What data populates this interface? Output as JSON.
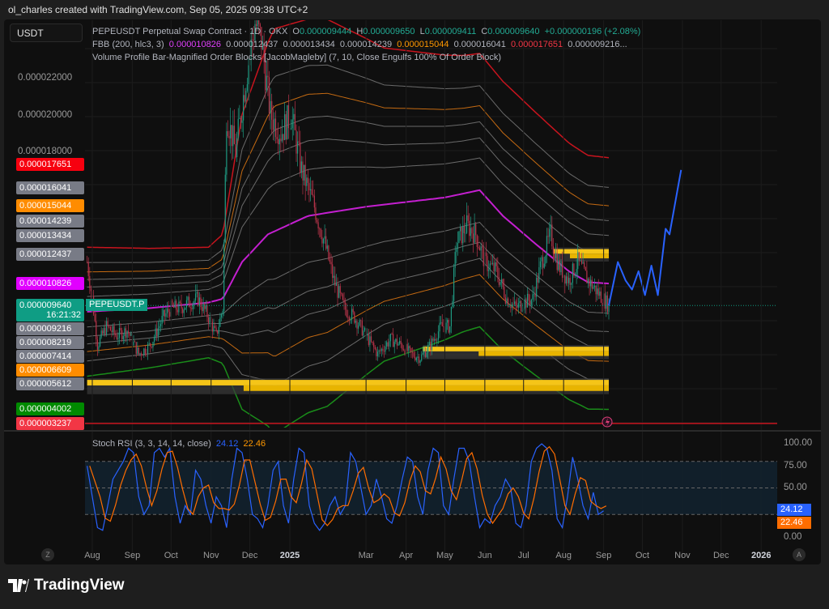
{
  "credit": "ol_charles created with TradingView.com, Sep 05, 2025 09:38 UTC+2",
  "currency": "USDT",
  "legend": {
    "symbol": "PEPEUSDT Perpetual Swap Contract · 1D · OKX",
    "o_label": "O",
    "o": "0.000009444",
    "h_label": "H",
    "h": "0.000009650",
    "l_label": "L",
    "l": "0.000009411",
    "c_label": "C",
    "c": "0.000009640",
    "change": "+0.000000196 (+2.08%)",
    "fbb_name": "FBB (200, hlc3, 3)",
    "fbb_values": [
      "0.000010826",
      "0.000012437",
      "0.000013434",
      "0.000014239",
      "0.000015044",
      "0.000016041",
      "0.000017651",
      "0.000009216..."
    ],
    "vp_name": "Volume Profile Bar-Magnified Order Blocks [JacobMagleby] (7, 10, Close Engulfs 100% Of Order Block)"
  },
  "price_ticks": [
    {
      "label": "0.000022000",
      "price": 2.2e-05
    },
    {
      "label": "0.000020000",
      "price": 2e-05
    },
    {
      "label": "0.000018000",
      "price": 1.8e-05
    }
  ],
  "price_badges": [
    {
      "label": "0.000017651",
      "price": 1.7651e-05,
      "color": "#f7000f"
    },
    {
      "label": "0.000016041",
      "price": 1.6041e-05,
      "color": "#787b86"
    },
    {
      "label": "0.000015044",
      "price": 1.5044e-05,
      "color": "#ff8c00"
    },
    {
      "label": "0.000014239",
      "price": 1.4239e-05,
      "color": "#787b86"
    },
    {
      "label": "0.000013434",
      "price": 1.3434e-05,
      "color": "#787b86"
    },
    {
      "label": "0.000012437",
      "price": 1.2437e-05,
      "color": "#787b86"
    },
    {
      "label": "0.000010826",
      "price": 1.0826e-05,
      "color": "#e100ff"
    },
    {
      "label": "0.000009216",
      "price": 9.216e-06,
      "color": "#787b86"
    },
    {
      "label": "0.000008219",
      "price": 8.219e-06,
      "color": "#787b86"
    },
    {
      "label": "0.000007414",
      "price": 7.414e-06,
      "color": "#787b86"
    },
    {
      "label": "0.000006609",
      "price": 6.609e-06,
      "color": "#ff8c00"
    },
    {
      "label": "0.000005612",
      "price": 5.612e-06,
      "color": "#787b86"
    },
    {
      "label": "0.000004002",
      "price": 4.002e-06,
      "color": "#008a00"
    },
    {
      "label": "0.000003237",
      "price": 3.237e-06,
      "color": "#f23645"
    }
  ],
  "last_price": {
    "label": "0.000009640",
    "countdown": "16:21:32",
    "symbol_tag": "PEPEUSDT.P",
    "color": "#0f9d84",
    "price": 9.64e-06
  },
  "colors": {
    "up": "#1f9a82",
    "down": "#b8344a",
    "basis": "#c41fd0",
    "upper": "#c8141e",
    "lower": "#1a8c1a",
    "fib_orange": "#c46a12",
    "fib_gray": "#6a6a6a",
    "projection": "#2962ff",
    "order_block": "#f5c518"
  },
  "price_path": [
    [
      "2024-07-28",
      12
    ],
    [
      "2024-08-01",
      10
    ],
    [
      "2024-08-05",
      7.5
    ],
    [
      "2024-08-12",
      8.5
    ],
    [
      "2024-08-20",
      8
    ],
    [
      "2024-08-28",
      8.3
    ],
    [
      "2024-09-06",
      7
    ],
    [
      "2024-09-15",
      7.5
    ],
    [
      "2024-09-25",
      9
    ],
    [
      "2024-10-01",
      9.5
    ],
    [
      "2024-10-08",
      9.5
    ],
    [
      "2024-10-15",
      9.8
    ],
    [
      "2024-10-22",
      10
    ],
    [
      "2024-10-30",
      9
    ],
    [
      "2024-11-05",
      8
    ],
    [
      "2024-11-10",
      9.5
    ],
    [
      "2024-11-13",
      20
    ],
    [
      "2024-11-20",
      18
    ],
    [
      "2024-11-28",
      22
    ],
    [
      "2024-12-05",
      25
    ],
    [
      "2024-12-10",
      24
    ],
    [
      "2024-12-17",
      20
    ],
    [
      "2024-12-25",
      19
    ],
    [
      "2025-01-02",
      20
    ],
    [
      "2025-01-10",
      17
    ],
    [
      "2025-01-20",
      15
    ],
    [
      "2025-01-28",
      13
    ],
    [
      "2025-02-04",
      11
    ],
    [
      "2025-02-12",
      9.5
    ],
    [
      "2025-02-20",
      9
    ],
    [
      "2025-03-01",
      8
    ],
    [
      "2025-03-10",
      7
    ],
    [
      "2025-03-20",
      7.8
    ],
    [
      "2025-03-28",
      7.5
    ],
    [
      "2025-04-05",
      7
    ],
    [
      "2025-04-12",
      6.8
    ],
    [
      "2025-04-20",
      7.5
    ],
    [
      "2025-04-28",
      8.5
    ],
    [
      "2025-05-05",
      8.5
    ],
    [
      "2025-05-10",
      13
    ],
    [
      "2025-05-18",
      14
    ],
    [
      "2025-05-25",
      13.5
    ],
    [
      "2025-06-01",
      12
    ],
    [
      "2025-06-10",
      11.5
    ],
    [
      "2025-06-18",
      10
    ],
    [
      "2025-06-25",
      9.5
    ],
    [
      "2025-07-01",
      9.8
    ],
    [
      "2025-07-08",
      10
    ],
    [
      "2025-07-15",
      12
    ],
    [
      "2025-07-22",
      13.5
    ],
    [
      "2025-07-28",
      11.8
    ],
    [
      "2025-08-05",
      11
    ],
    [
      "2025-08-12",
      12
    ],
    [
      "2025-08-20",
      11
    ],
    [
      "2025-08-28",
      10.3
    ],
    [
      "2025-09-05",
      9.64
    ]
  ],
  "fbb_basis": [
    [
      "2024-07-28",
      9.3
    ],
    [
      "2024-09-15",
      9.5
    ],
    [
      "2024-10-30",
      9.8
    ],
    [
      "2024-11-10",
      10
    ],
    [
      "2024-11-25",
      12
    ],
    [
      "2024-12-15",
      13.5
    ],
    [
      "2025-01-15",
      14.5
    ],
    [
      "2025-03-01",
      15
    ],
    [
      "2025-05-01",
      15.5
    ],
    [
      "2025-05-28",
      15.9
    ],
    [
      "2025-06-15",
      14.5
    ],
    [
      "2025-07-10",
      13
    ],
    [
      "2025-08-05",
      11.5
    ],
    [
      "2025-08-20",
      10.9
    ],
    [
      "2025-09-05",
      10.83
    ]
  ],
  "fbb_dev": [
    [
      "2024-07-28",
      3.5
    ],
    [
      "2024-10-30",
      3
    ],
    [
      "2024-11-10",
      3.5
    ],
    [
      "2024-11-25",
      8
    ],
    [
      "2024-12-20",
      11
    ],
    [
      "2025-01-30",
      10.5
    ],
    [
      "2025-03-15",
      8.5
    ],
    [
      "2025-05-15",
      7.5
    ],
    [
      "2025-07-01",
      7.2
    ],
    [
      "2025-08-15",
      6.9
    ],
    [
      "2025-09-05",
      6.83
    ]
  ],
  "order_blocks": [
    {
      "from": "2024-07-28",
      "to": "2025-09-05",
      "low": 5.0,
      "high": 5.6
    },
    {
      "from": "2025-04-14",
      "to": "2025-09-05",
      "low": 6.9,
      "high": 7.4
    },
    {
      "from": "2025-07-24",
      "to": "2025-09-05",
      "low": 12.2,
      "high": 12.7
    }
  ],
  "projection": [
    [
      "2025-09-05",
      9.64
    ],
    [
      "2025-09-12",
      12
    ],
    [
      "2025-09-18",
      11
    ],
    [
      "2025-09-23",
      10.5
    ],
    [
      "2025-09-28",
      11.5
    ],
    [
      "2025-10-03",
      10.2
    ],
    [
      "2025-10-08",
      11.8
    ],
    [
      "2025-10-13",
      10.2
    ],
    [
      "2025-10-19",
      13.8
    ],
    [
      "2025-10-22",
      13.5
    ],
    [
      "2025-10-31",
      17
    ]
  ],
  "stoch_rsi": {
    "name": "Stoch RSI (3, 3, 14, 14, close)",
    "k_label": "24.12",
    "d_label": "22.46",
    "k_color": "#2962ff",
    "d_color": "#ff6d00",
    "axis": [
      "100.00",
      "75.00",
      "50.00",
      "0.00"
    ],
    "k": [
      75,
      40,
      5,
      2,
      30,
      60,
      70,
      80,
      95,
      90,
      40,
      20,
      30,
      90,
      95,
      85,
      95,
      40,
      10,
      30,
      20,
      70,
      60,
      30,
      10,
      40,
      30,
      5,
      60,
      95,
      90,
      60,
      20,
      15,
      5,
      30,
      70,
      80,
      30,
      10,
      60,
      95,
      90,
      30,
      10,
      2,
      10,
      30,
      40,
      20,
      30,
      90,
      80,
      50,
      20,
      30,
      60,
      40,
      15,
      10,
      30,
      60,
      85,
      80,
      40,
      20,
      70,
      95,
      90,
      30,
      20,
      60,
      95,
      95,
      80,
      40,
      5,
      15,
      10,
      30,
      40,
      60,
      50,
      10,
      5,
      30,
      80,
      95,
      100,
      95,
      70,
      15,
      5,
      40,
      85,
      60,
      30,
      15,
      45,
      20,
      24
    ]
  },
  "time_axis": [
    {
      "label": "Aug",
      "date": "2024-08-01"
    },
    {
      "label": "Sep",
      "date": "2024-09-01"
    },
    {
      "label": "Oct",
      "date": "2024-10-01"
    },
    {
      "label": "Nov",
      "date": "2024-11-01"
    },
    {
      "label": "Dec",
      "date": "2024-12-01"
    },
    {
      "label": "2025",
      "date": "2025-01-01",
      "bold": true
    },
    {
      "label": "Mar",
      "date": "2025-03-01"
    },
    {
      "label": "Apr",
      "date": "2025-04-01"
    },
    {
      "label": "May",
      "date": "2025-05-01"
    },
    {
      "label": "Jun",
      "date": "2025-06-01"
    },
    {
      "label": "Jul",
      "date": "2025-07-01"
    },
    {
      "label": "Aug",
      "date": "2025-08-01"
    },
    {
      "label": "Sep",
      "date": "2025-09-01"
    },
    {
      "label": "Oct",
      "date": "2025-10-01"
    },
    {
      "label": "Nov",
      "date": "2025-11-01"
    },
    {
      "label": "Dec",
      "date": "2025-12-01"
    },
    {
      "label": "2026",
      "date": "2026-01-01",
      "bold": true
    }
  ],
  "buttons": {
    "zoom": "Z",
    "auto": "A"
  },
  "brand": "TradingView"
}
